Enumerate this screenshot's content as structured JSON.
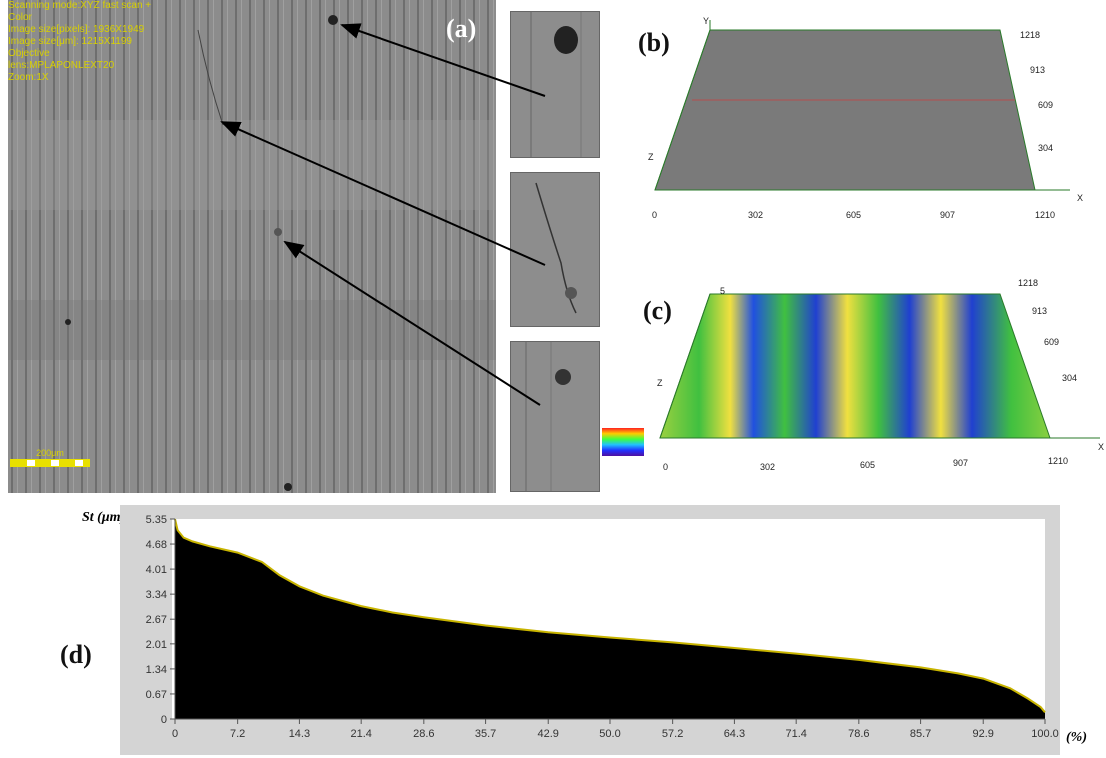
{
  "micrograph": {
    "overlay_lines": [
      "Scanning mode:XYZ fast scan +",
      "Color",
      "Image size[pixels]: 1936X1949",
      "Image size[μm]: 1215X1199",
      "Objective",
      "lens:MPLAPONLEXT20",
      "Zoom:1X"
    ],
    "scale_bar": "200μm",
    "label": "(a)"
  },
  "panel_b": {
    "label": "(b)",
    "x_ticks": [
      "0",
      "302",
      "605",
      "907",
      "1210"
    ],
    "y_ticks": [
      "1218",
      "913",
      "609",
      "304"
    ],
    "axis_x": "X",
    "axis_y": "Y",
    "axis_z": "Z"
  },
  "panel_c": {
    "label": "(c)",
    "x_ticks": [
      "0",
      "302",
      "605",
      "907",
      "1210"
    ],
    "y_ticks": [
      "1218",
      "913",
      "609",
      "304"
    ],
    "axis_x": "X",
    "axis_z": "Z",
    "corner_tick": "5"
  },
  "panel_d": {
    "label": "(d)"
  },
  "chart_data": {
    "type": "area",
    "title": "",
    "ylabel": "St (μm)",
    "xlabel": "(%)",
    "x_ticks": [
      "0",
      "7.2",
      "14.3",
      "21.4",
      "28.6",
      "35.7",
      "42.9",
      "50.0",
      "57.2",
      "64.3",
      "71.4",
      "78.6",
      "85.7",
      "92.9",
      "100.0"
    ],
    "y_ticks": [
      "0",
      "0.67",
      "1.34",
      "2.01",
      "2.67",
      "3.34",
      "4.01",
      "4.68",
      "5.35"
    ],
    "xlim": [
      0,
      100
    ],
    "ylim": [
      0,
      5.35
    ],
    "fill_color": "#000000",
    "line_color": "#c8b400",
    "x": [
      0,
      0.3,
      1,
      2,
      4,
      7.2,
      10,
      12,
      14.3,
      17,
      21.4,
      25,
      28.6,
      35.7,
      42.9,
      50,
      57.2,
      64.3,
      71.4,
      78.6,
      85.7,
      90,
      92.9,
      96,
      98,
      99.5,
      100
    ],
    "y": [
      5.35,
      5.05,
      4.85,
      4.75,
      4.62,
      4.45,
      4.2,
      3.85,
      3.55,
      3.3,
      3.02,
      2.85,
      2.72,
      2.5,
      2.32,
      2.18,
      2.05,
      1.9,
      1.75,
      1.58,
      1.38,
      1.22,
      1.08,
      0.82,
      0.55,
      0.32,
      0.18
    ]
  }
}
